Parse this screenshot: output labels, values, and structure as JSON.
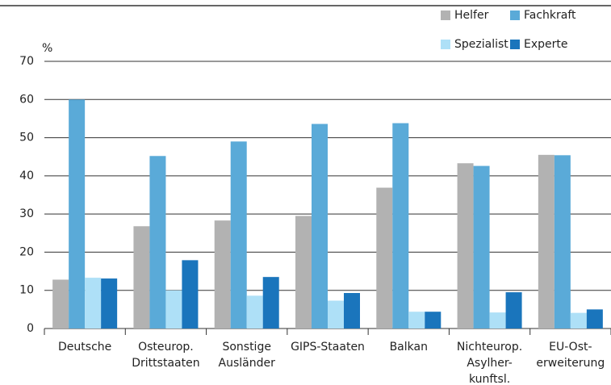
{
  "chart_data": {
    "type": "bar",
    "y_unit_label": "%",
    "categories": [
      "Deutsche",
      "Osteurop.\nDrittstaaten",
      "Sonstige\nAusländer",
      "GIPS-Staaten",
      "Balkan",
      "Nichteurop.\nAsylher-\nkunftsl.",
      "EU-Ost-\nerweiterung"
    ],
    "series": [
      {
        "name": "Helfer",
        "color": "#b2b2b2",
        "values": [
          12.8,
          26.8,
          28.3,
          29.5,
          36.9,
          43.3,
          45.5
        ]
      },
      {
        "name": "Fachkraft",
        "color": "#5aaad8",
        "values": [
          60,
          45.2,
          49,
          53.6,
          53.8,
          42.6,
          45.4
        ]
      },
      {
        "name": "Spezialist",
        "color": "#aee0f7",
        "values": [
          13.3,
          10,
          8.6,
          7.3,
          4.4,
          4.2,
          4.1
        ]
      },
      {
        "name": "Experte",
        "color": "#1a75bc",
        "values": [
          13.1,
          17.9,
          13.5,
          9.3,
          4.4,
          9.5,
          5.0
        ]
      }
    ],
    "ylim": [
      0,
      70
    ],
    "yticks": [
      0,
      10,
      20,
      30,
      40,
      50,
      60,
      70
    ],
    "grid": true
  }
}
